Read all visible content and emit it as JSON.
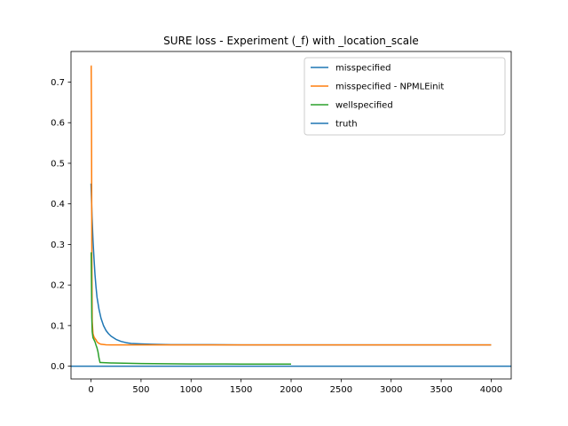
{
  "chart_data": {
    "type": "line",
    "title": "SURE loss - Experiment (_f) with _location_scale",
    "xlabel": "",
    "ylabel": "",
    "xlim": [
      -200,
      4200
    ],
    "ylim": [
      -0.0315,
      0.7755
    ],
    "xticks": [
      0,
      500,
      1000,
      1500,
      2000,
      2500,
      3000,
      3500,
      4000
    ],
    "xtick_labels": [
      "0",
      "500",
      "1000",
      "1500",
      "2000",
      "2500",
      "3000",
      "3500",
      "4000"
    ],
    "yticks": [
      0.0,
      0.1,
      0.2,
      0.3,
      0.4,
      0.5,
      0.6,
      0.7
    ],
    "ytick_labels": [
      "0.0",
      "0.1",
      "0.2",
      "0.3",
      "0.4",
      "0.5",
      "0.6",
      "0.7"
    ],
    "grid": false,
    "legend_position": "top-right",
    "series": [
      {
        "name": "misspecified",
        "color": "#1f77b4",
        "x": [
          0,
          5,
          10,
          20,
          30,
          40,
          50,
          60,
          80,
          100,
          125,
          150,
          175,
          200,
          250,
          300,
          350,
          400,
          500,
          600,
          700,
          800,
          1000,
          1200,
          1500,
          2000,
          2500,
          3000,
          3500,
          4000
        ],
        "y": [
          0.45,
          0.41,
          0.37,
          0.31,
          0.265,
          0.225,
          0.195,
          0.17,
          0.14,
          0.118,
          0.1,
          0.088,
          0.08,
          0.074,
          0.066,
          0.061,
          0.058,
          0.056,
          0.055,
          0.054,
          0.0535,
          0.053,
          0.053,
          0.053,
          0.0525,
          0.0525,
          0.0525,
          0.0525,
          0.0525,
          0.0525
        ]
      },
      {
        "name": "misspecified - NPMLEinit",
        "color": "#ff7f0e",
        "x": [
          0,
          2,
          5,
          8,
          12,
          20,
          30,
          40,
          50,
          60,
          80,
          100,
          150,
          200,
          300,
          500,
          1000,
          2000,
          3000,
          4000
        ],
        "y": [
          0.74,
          0.74,
          0.6,
          0.3,
          0.11,
          0.08,
          0.072,
          0.068,
          0.065,
          0.06,
          0.056,
          0.054,
          0.0528,
          0.0525,
          0.0525,
          0.0525,
          0.0525,
          0.0525,
          0.0525,
          0.0525
        ]
      },
      {
        "name": "wellspecified",
        "color": "#2ca02c",
        "x": [
          0,
          2,
          5,
          8,
          12,
          20,
          30,
          40,
          50,
          60,
          70,
          80,
          90,
          100,
          200,
          500,
          1000,
          1500,
          2000
        ],
        "y": [
          0.28,
          0.28,
          0.2,
          0.12,
          0.085,
          0.07,
          0.065,
          0.06,
          0.052,
          0.045,
          0.035,
          0.02,
          0.009,
          0.009,
          0.008,
          0.0065,
          0.0055,
          0.0052,
          0.005
        ]
      },
      {
        "name": "truth",
        "color": "#1f77b4",
        "hline": 0.0
      }
    ]
  }
}
